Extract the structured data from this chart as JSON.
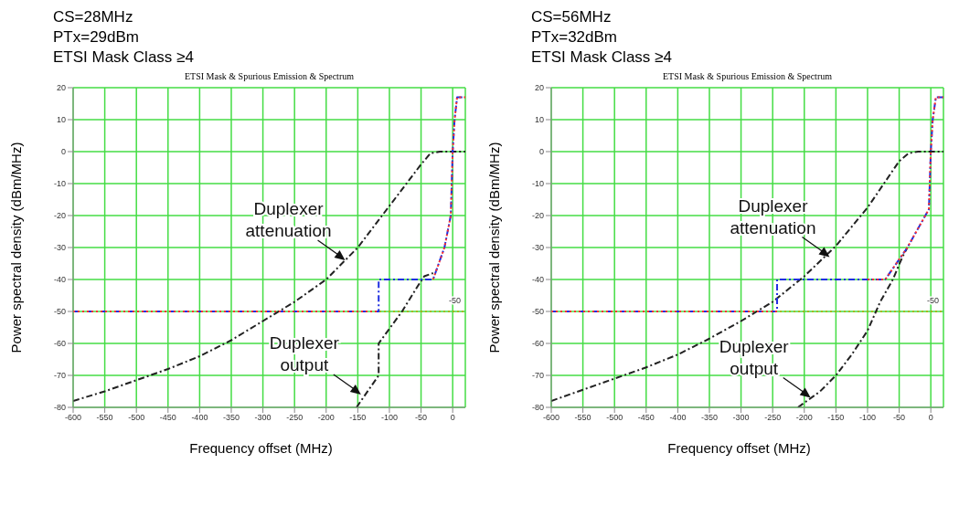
{
  "chart_data": [
    {
      "type": "line",
      "title": "ETSI Mask & Spurious Emission & Spectrum",
      "xlabel": "Frequency offset (MHz)",
      "ylabel": "Power spectral density (dBm/MHz)",
      "annotations": [
        "CS=28MHz",
        "PTx=29dBm",
        "ETSI Mask Class ≥4",
        {
          "text": "Duplexer attenuation",
          "x": -170,
          "y": -34
        },
        {
          "text": "Duplexer output",
          "x": -145,
          "y": -76
        }
      ],
      "xlim": [
        -600,
        20
      ],
      "xticks": [
        -600,
        -550,
        -500,
        -450,
        -400,
        -350,
        -300,
        -250,
        -200,
        -150,
        -100,
        -50,
        0
      ],
      "ylim": [
        -80,
        20
      ],
      "yticks": [
        -80,
        -70,
        -60,
        -50,
        -40,
        -30,
        -20,
        -10,
        0,
        10,
        20
      ],
      "grid": true,
      "legend": false,
      "ref_lines": [
        {
          "axis": "y",
          "value": -50,
          "label": "-50",
          "color": "#b8a800",
          "line_style": "dotted"
        }
      ],
      "series": [
        {
          "color": "#222222",
          "line_style": "dashed",
          "x": [
            -600,
            -550,
            -500,
            -450,
            -400,
            -350,
            -300,
            -250,
            -200,
            -150,
            -100,
            -50,
            -35,
            -20,
            0,
            20
          ],
          "values": [
            -78,
            -75,
            -71.5,
            -68,
            -64,
            -59,
            -53,
            -47,
            -40,
            -30,
            -17,
            -4,
            -0.5,
            0,
            0,
            0
          ]
        },
        {
          "color": "#222222",
          "line_style": "dashed",
          "x": [
            -152,
            -117,
            -117,
            -80,
            -55,
            -45,
            -31
          ],
          "values": [
            -80,
            -70,
            -60,
            -50,
            -42,
            -39,
            -38
          ]
        },
        {
          "color": "#2030e0",
          "line_style": "dashed",
          "x": [
            -600,
            -117,
            -117,
            -31,
            -13,
            -3,
            0,
            3,
            7,
            20
          ],
          "values": [
            -50,
            -50,
            -40,
            -40,
            -30,
            -20,
            0,
            10,
            17,
            17
          ]
        },
        {
          "color": "#ff3030",
          "line_style": "dotted",
          "x": [
            -600,
            -117
          ],
          "values": [
            -50,
            -50
          ]
        },
        {
          "color": "#ff3030",
          "line_style": "dotted",
          "x": [
            -31,
            -13,
            -3,
            0,
            3,
            7,
            20
          ],
          "values": [
            -40,
            -30,
            -20,
            0,
            10,
            17,
            17
          ]
        }
      ]
    },
    {
      "type": "line",
      "title": "ETSI Mask & Spurious Emission & Spectrum",
      "xlabel": "Frequency offset (MHz)",
      "ylabel": "Power spectral density (dBm/MHz)",
      "annotations": [
        "CS=56MHz",
        "PTx=32dBm",
        "ETSI Mask Class ≥4",
        {
          "text": "Duplexer attenuation",
          "x": -160,
          "y": -33
        },
        {
          "text": "Duplexer output",
          "x": -190,
          "y": -77
        }
      ],
      "xlim": [
        -600,
        20
      ],
      "xticks": [
        -600,
        -550,
        -500,
        -450,
        -400,
        -350,
        -300,
        -250,
        -200,
        -150,
        -100,
        -50,
        0
      ],
      "ylim": [
        -80,
        20
      ],
      "yticks": [
        -80,
        -70,
        -60,
        -50,
        -40,
        -30,
        -20,
        -10,
        0,
        10,
        20
      ],
      "grid": true,
      "legend": false,
      "ref_lines": [
        {
          "axis": "y",
          "value": -50,
          "label": "-50",
          "color": "#b8a800",
          "line_style": "dotted"
        }
      ],
      "series": [
        {
          "color": "#222222",
          "line_style": "dashed",
          "x": [
            -600,
            -550,
            -500,
            -450,
            -400,
            -350,
            -300,
            -250,
            -200,
            -150,
            -100,
            -50,
            -35,
            -20,
            0,
            20
          ],
          "values": [
            -78,
            -74.5,
            -71,
            -67.5,
            -63.5,
            -58.5,
            -53,
            -47,
            -39,
            -29.5,
            -17.5,
            -3,
            -0.5,
            0,
            0,
            0
          ]
        },
        {
          "color": "#222222",
          "line_style": "dashed",
          "x": [
            -210,
            -175,
            -150,
            -125,
            -100,
            -80,
            -60,
            -45,
            -37
          ],
          "values": [
            -80,
            -75,
            -70,
            -63.5,
            -56,
            -47,
            -40,
            -33,
            -30
          ]
        },
        {
          "color": "#2030e0",
          "line_style": "dashed",
          "x": [
            -600,
            -243,
            -243,
            -72,
            -37,
            -3,
            0,
            3,
            8,
            20
          ],
          "values": [
            -50,
            -50,
            -40,
            -40,
            -30,
            -18,
            0,
            10,
            17,
            17
          ]
        },
        {
          "color": "#ff3030",
          "line_style": "dotted",
          "x": [
            -600,
            -243
          ],
          "values": [
            -50,
            -50
          ]
        },
        {
          "color": "#ff3030",
          "line_style": "dotted",
          "x": [
            -100,
            -72,
            -37,
            -3,
            0,
            3,
            8,
            20
          ],
          "values": [
            -40,
            -40,
            -30,
            -18,
            0,
            10,
            17,
            17
          ]
        }
      ]
    }
  ]
}
